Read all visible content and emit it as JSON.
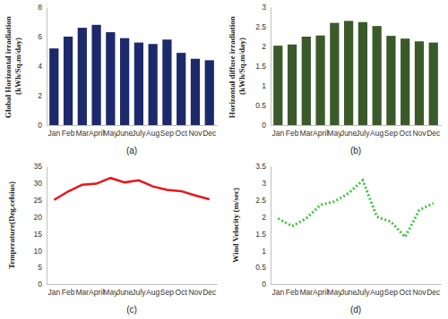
{
  "chart_data": [
    {
      "type": "bar",
      "y_label": "Global Horizontal irradiation (kWh/Sq.m/day)",
      "annotations": [
        "(a)"
      ],
      "categories": [
        "Jan",
        "Feb",
        "Mar",
        "April",
        "May",
        "June",
        "July",
        "Aug",
        "Sep",
        "Oct",
        "Nov",
        "Dec"
      ],
      "values": [
        5.2,
        6.0,
        6.6,
        6.8,
        6.3,
        5.9,
        5.6,
        5.5,
        5.8,
        4.9,
        4.5,
        4.4
      ],
      "color": "#1c2a6b",
      "ylim": [
        0,
        8
      ],
      "yticks": [
        0,
        2,
        4,
        6,
        8
      ],
      "grid": false
    },
    {
      "type": "bar",
      "y_label": "Horizontal diffuse irradiation (kWh/Sq.m/day)",
      "annotations": [
        "(b)"
      ],
      "categories": [
        "Jan",
        "Feb",
        "Mar",
        "April",
        "May",
        "June",
        "July",
        "Aug",
        "Sep",
        "Oct",
        "Nov",
        "Dec"
      ],
      "values": [
        2.02,
        2.05,
        2.25,
        2.28,
        2.6,
        2.65,
        2.62,
        2.52,
        2.27,
        2.2,
        2.13,
        2.1
      ],
      "color": "#3b5a2a",
      "ylim": [
        0,
        3
      ],
      "yticks": [
        0,
        0.5,
        1,
        1.5,
        2,
        2.5,
        3
      ],
      "grid": false
    },
    {
      "type": "line",
      "y_label": "Temperature(Deg.celsius)",
      "annotations": [
        "(c)"
      ],
      "categories": [
        "Jan",
        "Feb",
        "Mar",
        "April",
        "May",
        "June",
        "July",
        "Aug",
        "Sep",
        "Oct",
        "Nov",
        "Dec"
      ],
      "values": [
        25,
        27.5,
        29.5,
        29.8,
        31.5,
        30.2,
        30.8,
        29,
        28,
        27.6,
        26.3,
        25.2
      ],
      "color": "#e8151b",
      "line_style": "solid",
      "ylim": [
        0,
        35
      ],
      "yticks": [
        0,
        5,
        10,
        15,
        20,
        25,
        30,
        35
      ],
      "grid": false
    },
    {
      "type": "line",
      "y_label": "Wind Velocity (m/sec)",
      "annotations": [
        "(d)"
      ],
      "categories": [
        "Jan",
        "Feb",
        "Mar",
        "April",
        "May",
        "June",
        "July",
        "Aug",
        "Sep",
        "Oct",
        "Nov",
        "Dec"
      ],
      "values": [
        1.95,
        1.72,
        1.95,
        2.35,
        2.45,
        2.7,
        3.08,
        2.0,
        1.85,
        1.4,
        2.2,
        2.4
      ],
      "color": "#3cc43c",
      "line_style": "dotted",
      "ylim": [
        0,
        3.5
      ],
      "yticks": [
        0,
        0.5,
        1,
        1.5,
        2,
        2.5,
        3,
        3.5
      ],
      "grid": false
    }
  ]
}
